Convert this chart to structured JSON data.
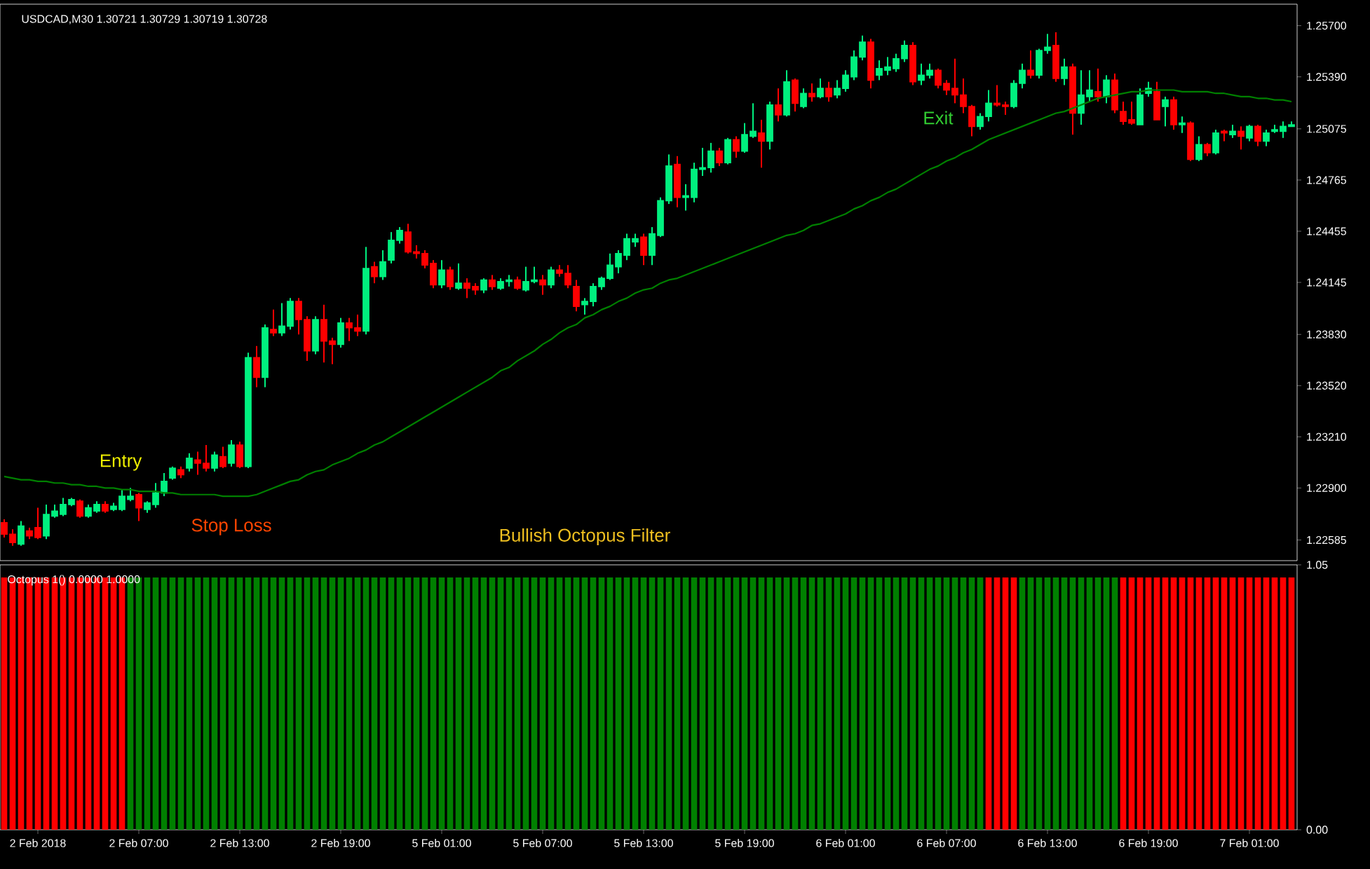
{
  "chart_data": [
    {
      "type": "candlestick",
      "title": "USDCAD,M30  1.30721 1.30729 1.30719 1.30728",
      "categories": [
        null,
        null,
        null,
        null,
        null,
        null,
        null,
        null,
        null,
        null,
        null,
        null,
        null,
        null,
        null,
        null,
        null,
        null,
        null,
        null,
        null,
        null,
        null,
        null,
        null,
        null,
        null,
        null,
        null,
        null,
        null,
        null,
        null,
        null,
        null,
        null,
        null,
        null,
        null,
        null,
        null,
        null,
        null,
        null,
        null,
        null,
        null,
        null,
        null,
        null,
        null,
        null,
        null,
        null,
        null,
        null,
        null,
        null,
        null,
        null,
        null,
        null,
        null,
        null,
        null,
        null,
        null,
        null,
        null,
        null,
        null,
        null,
        null,
        null,
        null,
        null,
        null,
        null,
        null,
        null,
        null,
        null,
        null,
        null,
        null,
        null,
        null,
        null,
        null,
        null,
        null,
        null,
        null,
        null,
        null,
        null,
        null,
        null,
        null,
        null,
        null,
        null,
        null,
        null,
        null,
        null,
        null,
        null,
        null,
        null,
        null,
        null,
        null,
        null,
        null,
        null,
        null,
        null,
        null,
        null,
        null,
        null,
        null,
        null,
        null,
        null,
        null,
        null,
        null,
        null,
        null,
        null,
        null,
        null,
        null,
        null,
        null,
        null,
        null,
        null,
        null,
        null,
        null,
        null,
        null,
        null,
        null,
        null,
        null,
        null,
        null,
        null,
        null,
        null
      ],
      "ohlc": [
        [
          1.2269,
          1.2271,
          1.226,
          1.2262
        ],
        [
          1.2262,
          1.2265,
          1.2255,
          1.2257
        ],
        [
          1.2256,
          1.227,
          1.2255,
          1.2267
        ],
        [
          1.2264,
          1.2266,
          1.2259,
          1.2261
        ],
        [
          1.2266,
          1.2278,
          1.2259,
          1.226
        ],
        [
          1.2261,
          1.228,
          1.2259,
          1.2274
        ],
        [
          1.2273,
          1.228,
          1.2272,
          1.2276
        ],
        [
          1.2274,
          1.2284,
          1.2273,
          1.228
        ],
        [
          1.228,
          1.2284,
          1.2279,
          1.2283
        ],
        [
          1.2282,
          1.2283,
          1.2272,
          1.2273
        ],
        [
          1.2273,
          1.228,
          1.2272,
          1.2278
        ],
        [
          1.2276,
          1.2282,
          1.2275,
          1.228
        ],
        [
          1.228,
          1.2282,
          1.2275,
          1.2276
        ],
        [
          1.2277,
          1.2281,
          1.2276,
          1.2279
        ],
        [
          1.2277,
          1.2289,
          1.2276,
          1.2285
        ],
        [
          1.2283,
          1.229,
          1.2282,
          1.2285
        ],
        [
          1.2286,
          1.2287,
          1.227,
          1.2278
        ],
        [
          1.2277,
          1.2282,
          1.2275,
          1.2281
        ],
        [
          1.228,
          1.2293,
          1.2278,
          1.2287
        ],
        [
          1.2287,
          1.2299,
          1.2285,
          1.2294
        ],
        [
          1.2296,
          1.2303,
          1.2295,
          1.2302
        ],
        [
          1.2301,
          1.2303,
          1.2296,
          1.2298
        ],
        [
          1.2302,
          1.2311,
          1.23,
          1.2308
        ],
        [
          1.2307,
          1.2312,
          1.2298,
          1.2305
        ],
        [
          1.2305,
          1.2316,
          1.23,
          1.2302
        ],
        [
          1.2302,
          1.2312,
          1.23,
          1.231
        ],
        [
          1.2309,
          1.2315,
          1.2302,
          1.2303
        ],
        [
          1.2305,
          1.2319,
          1.2303,
          1.2316
        ],
        [
          1.2316,
          1.2318,
          1.2302,
          1.2303
        ],
        [
          1.2303,
          1.2372,
          1.2302,
          1.2369
        ],
        [
          1.2369,
          1.2376,
          1.2351,
          1.2357
        ],
        [
          1.2357,
          1.2389,
          1.2351,
          1.2387
        ],
        [
          1.2386,
          1.2398,
          1.2382,
          1.2384
        ],
        [
          1.2384,
          1.2402,
          1.2382,
          1.2388
        ],
        [
          1.2388,
          1.2405,
          1.2386,
          1.2403
        ],
        [
          1.2403,
          1.2405,
          1.2383,
          1.2392
        ],
        [
          1.2392,
          1.2394,
          1.2367,
          1.2373
        ],
        [
          1.2373,
          1.2394,
          1.2371,
          1.2392
        ],
        [
          1.2392,
          1.2401,
          1.2366,
          1.2379
        ],
        [
          1.2379,
          1.2381,
          1.2365,
          1.2377
        ],
        [
          1.2377,
          1.2393,
          1.2375,
          1.239
        ],
        [
          1.239,
          1.2393,
          1.2379,
          1.2387
        ],
        [
          1.2387,
          1.2395,
          1.2382,
          1.2385
        ],
        [
          1.2385,
          1.2436,
          1.2383,
          1.2423
        ],
        [
          1.2424,
          1.2427,
          1.2414,
          1.2418
        ],
        [
          1.2418,
          1.2434,
          1.2416,
          1.2427
        ],
        [
          1.2428,
          1.2445,
          1.2426,
          1.244
        ],
        [
          1.244,
          1.2448,
          1.2438,
          1.2446
        ],
        [
          1.2445,
          1.245,
          1.2432,
          1.2433
        ],
        [
          1.2433,
          1.2437,
          1.2429,
          1.2432
        ],
        [
          1.2432,
          1.2434,
          1.2423,
          1.2425
        ],
        [
          1.2426,
          1.2428,
          1.2411,
          1.2413
        ],
        [
          1.2413,
          1.2428,
          1.2411,
          1.2422
        ],
        [
          1.2422,
          1.2424,
          1.241,
          1.2412
        ],
        [
          1.2411,
          1.2426,
          1.241,
          1.2414
        ],
        [
          1.2414,
          1.2417,
          1.2405,
          1.2411
        ],
        [
          1.2412,
          1.2414,
          1.2407,
          1.241
        ],
        [
          1.241,
          1.2417,
          1.2408,
          1.2416
        ],
        [
          1.2416,
          1.2419,
          1.241,
          1.2412
        ],
        [
          1.2411,
          1.2417,
          1.241,
          1.2415
        ],
        [
          1.2415,
          1.2419,
          1.2412,
          1.2416
        ],
        [
          1.2416,
          1.2418,
          1.241,
          1.2411
        ],
        [
          1.241,
          1.2424,
          1.2409,
          1.2415
        ],
        [
          1.2415,
          1.2424,
          1.2414,
          1.2416
        ],
        [
          1.2416,
          1.2419,
          1.2407,
          1.2413
        ],
        [
          1.2413,
          1.2424,
          1.2411,
          1.2422
        ],
        [
          1.2422,
          1.2425,
          1.2418,
          1.242
        ],
        [
          1.242,
          1.2425,
          1.2411,
          1.2413
        ],
        [
          1.2412,
          1.2416,
          1.2397,
          1.24
        ],
        [
          1.2401,
          1.2405,
          1.2395,
          1.2403
        ],
        [
          1.2403,
          1.2414,
          1.24,
          1.2412
        ],
        [
          1.2412,
          1.2418,
          1.241,
          1.2417
        ],
        [
          1.2417,
          1.2432,
          1.2416,
          1.2425
        ],
        [
          1.2424,
          1.2434,
          1.242,
          1.2432
        ],
        [
          1.2431,
          1.2444,
          1.2428,
          1.2441
        ],
        [
          1.2439,
          1.2444,
          1.2436,
          1.2441
        ],
        [
          1.2442,
          1.2444,
          1.2425,
          1.2431
        ],
        [
          1.2431,
          1.2448,
          1.2425,
          1.2444
        ],
        [
          1.2443,
          1.2466,
          1.2442,
          1.2464
        ],
        [
          1.2464,
          1.2492,
          1.2462,
          1.2485
        ],
        [
          1.2486,
          1.2491,
          1.246,
          1.2466
        ],
        [
          1.2466,
          1.2474,
          1.2458,
          1.2467
        ],
        [
          1.2466,
          1.2487,
          1.2463,
          1.2483
        ],
        [
          1.2483,
          1.2496,
          1.2479,
          1.2484
        ],
        [
          1.2484,
          1.2499,
          1.2481,
          1.2494
        ],
        [
          1.2494,
          1.2496,
          1.2485,
          1.2487
        ],
        [
          1.2487,
          1.2502,
          1.2486,
          1.2501
        ],
        [
          1.2501,
          1.2503,
          1.249,
          1.2494
        ],
        [
          1.2494,
          1.2511,
          1.2493,
          1.2504
        ],
        [
          1.2503,
          1.2523,
          1.2502,
          1.2506
        ],
        [
          1.2505,
          1.2513,
          1.2484,
          1.25
        ],
        [
          1.25,
          1.2524,
          1.2495,
          1.2522
        ],
        [
          1.2522,
          1.2532,
          1.2512,
          1.2516
        ],
        [
          1.2516,
          1.2543,
          1.2515,
          1.2536
        ],
        [
          1.2537,
          1.2538,
          1.2518,
          1.2523
        ],
        [
          1.2521,
          1.2532,
          1.252,
          1.2529
        ],
        [
          1.2529,
          1.2535,
          1.2524,
          1.2527
        ],
        [
          1.2527,
          1.2538,
          1.2526,
          1.2532
        ],
        [
          1.2532,
          1.2536,
          1.2524,
          1.2527
        ],
        [
          1.2528,
          1.2537,
          1.2526,
          1.2532
        ],
        [
          1.2532,
          1.2543,
          1.253,
          1.254
        ],
        [
          1.2539,
          1.2555,
          1.2537,
          1.2551
        ],
        [
          1.2551,
          1.2564,
          1.2549,
          1.256
        ],
        [
          1.256,
          1.2562,
          1.2532,
          1.2537
        ],
        [
          1.254,
          1.2549,
          1.2537,
          1.2544
        ],
        [
          1.2543,
          1.2551,
          1.254,
          1.2545
        ],
        [
          1.2544,
          1.2553,
          1.2542,
          1.255
        ],
        [
          1.255,
          1.2561,
          1.2548,
          1.2558
        ],
        [
          1.2558,
          1.256,
          1.2534,
          1.2536
        ],
        [
          1.2537,
          1.2547,
          1.2534,
          1.254
        ],
        [
          1.254,
          1.2547,
          1.2538,
          1.2543
        ],
        [
          1.2543,
          1.2544,
          1.2532,
          1.2534
        ],
        [
          1.2535,
          1.2537,
          1.2528,
          1.2531
        ],
        [
          1.2532,
          1.255,
          1.2523,
          1.2528
        ],
        [
          1.2528,
          1.2538,
          1.2517,
          1.2521
        ],
        [
          1.2521,
          1.2522,
          1.2503,
          1.2509
        ],
        [
          1.2509,
          1.2517,
          1.2507,
          1.2515
        ],
        [
          1.2515,
          1.2531,
          1.2512,
          1.2523
        ],
        [
          1.2523,
          1.2534,
          1.2521,
          1.2522
        ],
        [
          1.2522,
          1.2524,
          1.2516,
          1.2521
        ],
        [
          1.2521,
          1.2537,
          1.252,
          1.2535
        ],
        [
          1.2535,
          1.2547,
          1.2532,
          1.2543
        ],
        [
          1.2543,
          1.2555,
          1.2538,
          1.254
        ],
        [
          1.254,
          1.2556,
          1.2538,
          1.2555
        ],
        [
          1.2555,
          1.2565,
          1.2553,
          1.2557
        ],
        [
          1.2558,
          1.2566,
          1.2536,
          1.2538
        ],
        [
          1.2538,
          1.255,
          1.2534,
          1.2545
        ],
        [
          1.2545,
          1.2547,
          1.2504,
          1.2517
        ],
        [
          1.2517,
          1.2543,
          1.251,
          1.2528
        ],
        [
          1.2527,
          1.2543,
          1.2524,
          1.2531
        ],
        [
          1.253,
          1.2544,
          1.2524,
          1.2527
        ],
        [
          1.2527,
          1.254,
          1.2523,
          1.2537
        ],
        [
          1.2537,
          1.2541,
          1.2517,
          1.2519
        ],
        [
          1.2518,
          1.2524,
          1.251,
          1.2512
        ],
        [
          1.2513,
          1.2524,
          1.251,
          1.2511
        ],
        [
          1.251,
          1.2532,
          1.251,
          1.2528
        ],
        [
          1.2529,
          1.2536,
          1.2527,
          1.2532
        ],
        [
          1.253,
          1.2536,
          1.2513,
          1.2513
        ],
        [
          1.2521,
          1.2527,
          1.2509,
          1.2525
        ],
        [
          1.2525,
          1.2527,
          1.2507,
          1.251
        ],
        [
          1.251,
          1.2515,
          1.2505,
          1.2511
        ],
        [
          1.2511,
          1.2512,
          1.2488,
          1.2489
        ],
        [
          1.2489,
          1.2503,
          1.2488,
          1.2498
        ],
        [
          1.2498,
          1.2499,
          1.2491,
          1.2493
        ],
        [
          1.2493,
          1.2507,
          1.2492,
          1.2505
        ],
        [
          1.2506,
          1.2507,
          1.25,
          1.2505
        ],
        [
          1.2504,
          1.251,
          1.2502,
          1.2506
        ],
        [
          1.2506,
          1.2509,
          1.2495,
          1.2503
        ],
        [
          1.2502,
          1.251,
          1.25,
          1.2509
        ],
        [
          1.2509,
          1.251,
          1.2497,
          1.25
        ],
        [
          1.25,
          1.2507,
          1.2497,
          1.2505
        ],
        [
          1.2506,
          1.251,
          1.2505,
          1.2507
        ],
        [
          1.2506,
          1.2512,
          1.2502,
          1.2509
        ],
        [
          1.2509,
          1.2512,
          1.2509,
          1.251
        ]
      ],
      "colors": [
        "#ff0000",
        "#ff0000",
        "#00f07f",
        "#ff0000",
        "#ff0000",
        "#00f07f",
        "#00f07f",
        "#00f07f",
        "#00f07f",
        "#ff0000",
        "#00f07f",
        "#00f07f",
        "#ff0000",
        "#00f07f",
        "#00f07f",
        "#00f07f",
        "#ff0000",
        "#00f07f",
        "#00f07f",
        "#00f07f",
        "#00f07f",
        "#ff0000",
        "#00f07f",
        "#ff0000",
        "#ff0000",
        "#00f07f",
        "#ff0000",
        "#00f07f",
        "#ff0000",
        "#00f07f",
        "#ff0000",
        "#00f07f",
        "#ff0000",
        "#00f07f",
        "#00f07f",
        "#ff0000",
        "#ff0000",
        "#00f07f",
        "#ff0000",
        "#ff0000",
        "#00f07f",
        "#ff0000",
        "#ff0000",
        "#00f07f",
        "#ff0000",
        "#00f07f",
        "#00f07f",
        "#00f07f",
        "#ff0000",
        "#ff0000",
        "#ff0000",
        "#ff0000",
        "#00f07f",
        "#ff0000",
        "#00f07f",
        "#ff0000",
        "#ff0000",
        "#00f07f",
        "#ff0000",
        "#00f07f",
        "#00f07f",
        "#ff0000",
        "#00f07f",
        "#00f07f",
        "#ff0000",
        "#00f07f",
        "#ff0000",
        "#ff0000",
        "#ff0000",
        "#00f07f",
        "#00f07f",
        "#00f07f",
        "#00f07f",
        "#00f07f",
        "#00f07f",
        "#00f07f",
        "#ff0000",
        "#00f07f",
        "#00f07f",
        "#00f07f",
        "#ff0000",
        "#00f07f",
        "#00f07f",
        "#00f07f",
        "#00f07f",
        "#ff0000",
        "#00f07f",
        "#ff0000",
        "#00f07f",
        "#00f07f",
        "#ff0000",
        "#00f07f",
        "#ff0000",
        "#00f07f",
        "#ff0000",
        "#00f07f",
        "#ff0000",
        "#00f07f",
        "#ff0000",
        "#00f07f",
        "#00f07f",
        "#00f07f",
        "#00f07f",
        "#ff0000",
        "#00f07f",
        "#00f07f",
        "#00f07f",
        "#00f07f",
        "#ff0000",
        "#00f07f",
        "#00f07f",
        "#ff0000",
        "#ff0000",
        "#ff0000",
        "#ff0000",
        "#ff0000",
        "#00f07f",
        "#00f07f",
        "#ff0000",
        "#ff0000",
        "#00f07f",
        "#00f07f",
        "#ff0000",
        "#00f07f",
        "#00f07f",
        "#ff0000",
        "#00f07f",
        "#ff0000",
        "#00f07f",
        "#00f07f",
        "#ff0000",
        "#00f07f",
        "#ff0000",
        "#ff0000",
        "#ff0000",
        "#00f07f",
        "#00f07f",
        "#ff0000",
        "#00f07f",
        "#ff0000",
        "#00f07f",
        "#ff0000",
        "#00f07f",
        "#ff0000",
        "#00f07f",
        "#ff0000",
        "#00f07f",
        "#ff0000",
        "#00f07f",
        "#ff0000",
        "#00f07f",
        "#00f07f",
        "#00f07f",
        "#00f07f"
      ],
      "series": [
        {
          "type": "line",
          "color": "#008000",
          "values": [
            1.2297,
            1.2296,
            1.2295,
            1.2295,
            1.2294,
            1.2294,
            1.2293,
            1.2293,
            1.2292,
            1.2292,
            1.2291,
            1.2291,
            1.229,
            1.229,
            1.2289,
            1.2289,
            1.2288,
            1.2288,
            1.2288,
            1.2287,
            1.2287,
            1.2286,
            1.2286,
            1.2286,
            1.2286,
            1.2286,
            1.2285,
            1.2285,
            1.2285,
            1.2285,
            1.2286,
            1.2288,
            1.229,
            1.2292,
            1.2294,
            1.2295,
            1.2298,
            1.23,
            1.2301,
            1.2304,
            1.2306,
            1.2308,
            1.2311,
            1.2313,
            1.2316,
            1.2318,
            1.2321,
            1.2324,
            1.2327,
            1.233,
            1.2333,
            1.2336,
            1.2339,
            1.2342,
            1.2345,
            1.2348,
            1.2351,
            1.2354,
            1.2357,
            1.2361,
            1.2363,
            1.2367,
            1.237,
            1.2373,
            1.2377,
            1.238,
            1.2384,
            1.2387,
            1.2389,
            1.2393,
            1.2395,
            1.2398,
            1.24,
            1.2403,
            1.2405,
            1.2408,
            1.241,
            1.2411,
            1.2414,
            1.2416,
            1.2417,
            1.2419,
            1.2421,
            1.2423,
            1.2425,
            1.2427,
            1.2429,
            1.2431,
            1.2433,
            1.2435,
            1.2437,
            1.2439,
            1.2441,
            1.2443,
            1.2444,
            1.2446,
            1.2449,
            1.245,
            1.2452,
            1.2454,
            1.2456,
            1.2459,
            1.2461,
            1.2464,
            1.2466,
            1.2469,
            1.2471,
            1.2474,
            1.2477,
            1.248,
            1.2483,
            1.2485,
            1.2488,
            1.249,
            1.2493,
            1.2495,
            1.2498,
            1.2501,
            1.2503,
            1.2505,
            1.2507,
            1.2509,
            1.2511,
            1.2513,
            1.2515,
            1.2517,
            1.2518,
            1.252,
            1.2522,
            1.2524,
            1.2526,
            1.2527,
            1.2528,
            1.2529,
            1.253,
            1.253,
            1.2531,
            1.2531,
            1.2531,
            1.2531,
            1.253,
            1.253,
            1.253,
            1.253,
            1.2529,
            1.2529,
            1.2528,
            1.2527,
            1.2527,
            1.2526,
            1.2526,
            1.2525,
            1.2525,
            1.2524
          ]
        }
      ],
      "ylim": [
        1.2246,
        1.2583
      ],
      "yticks": [
        {
          "value": 1.257,
          "label": "1.25700"
        },
        {
          "value": 1.2539,
          "label": "1.25390"
        },
        {
          "value": 1.25075,
          "label": "1.25075"
        },
        {
          "value": 1.24765,
          "label": "1.24765"
        },
        {
          "value": 1.24455,
          "label": "1.24455"
        },
        {
          "value": 1.24145,
          "label": "1.24145"
        },
        {
          "value": 1.2383,
          "label": "1.23830"
        },
        {
          "value": 1.2352,
          "label": "1.23520"
        },
        {
          "value": 1.2321,
          "label": "1.23210"
        },
        {
          "value": 1.229,
          "label": "1.22900"
        },
        {
          "value": 1.22585,
          "label": "1.22585"
        }
      ],
      "tick_labels": "y",
      "annotations": [
        "Entry",
        "Stop Loss",
        "Exit",
        "Bullish Octopus Filter"
      ]
    },
    {
      "type": "bar",
      "title": "Octopus 1() 0.0000 1.0000",
      "categories": [
        null,
        null,
        null,
        null,
        "2 Feb 2018",
        null,
        null,
        null,
        null,
        null,
        null,
        null,
        null,
        null,
        null,
        null,
        "2 Feb 07:00",
        null,
        null,
        null,
        null,
        null,
        null,
        null,
        null,
        null,
        null,
        null,
        "2 Feb 13:00",
        null,
        null,
        null,
        null,
        null,
        null,
        null,
        null,
        null,
        null,
        null,
        "2 Feb 19:00",
        null,
        null,
        null,
        null,
        null,
        null,
        null,
        null,
        null,
        null,
        null,
        "5 Feb 01:00",
        null,
        null,
        null,
        null,
        null,
        null,
        null,
        null,
        null,
        null,
        null,
        "5 Feb 07:00",
        null,
        null,
        null,
        null,
        null,
        null,
        null,
        null,
        null,
        null,
        null,
        "5 Feb 13:00",
        null,
        null,
        null,
        null,
        null,
        null,
        null,
        null,
        null,
        null,
        null,
        "5 Feb 19:00",
        null,
        null,
        null,
        null,
        null,
        null,
        null,
        null,
        null,
        null,
        null,
        "6 Feb 01:00",
        null,
        null,
        null,
        null,
        null,
        null,
        null,
        null,
        null,
        null,
        null,
        "6 Feb 07:00",
        null,
        null,
        null,
        null,
        null,
        null,
        null,
        null,
        null,
        null,
        null,
        "6 Feb 13:00",
        null,
        null,
        null,
        null,
        null,
        null,
        null,
        null,
        null,
        null,
        null,
        "6 Feb 19:00",
        null,
        null,
        null,
        null,
        null,
        null,
        null,
        null,
        null,
        null,
        null,
        "7 Feb 01:00",
        null,
        null,
        null,
        null,
        null
      ],
      "values": [
        1,
        1,
        1,
        1,
        1,
        1,
        1,
        1,
        1,
        1,
        1,
        1,
        1,
        1,
        1,
        1,
        1,
        1,
        1,
        1,
        1,
        1,
        1,
        1,
        1,
        1,
        1,
        1,
        1,
        1,
        1,
        1,
        1,
        1,
        1,
        1,
        1,
        1,
        1,
        1,
        1,
        1,
        1,
        1,
        1,
        1,
        1,
        1,
        1,
        1,
        1,
        1,
        1,
        1,
        1,
        1,
        1,
        1,
        1,
        1,
        1,
        1,
        1,
        1,
        1,
        1,
        1,
        1,
        1,
        1,
        1,
        1,
        1,
        1,
        1,
        1,
        1,
        1,
        1,
        1,
        1,
        1,
        1,
        1,
        1,
        1,
        1,
        1,
        1,
        1,
        1,
        1,
        1,
        1,
        1,
        1,
        1,
        1,
        1,
        1,
        1,
        1,
        1,
        1,
        1,
        1,
        1,
        1,
        1,
        1,
        1,
        1,
        1,
        1,
        1,
        1,
        1,
        1,
        1,
        1,
        1,
        1,
        1,
        1,
        1,
        1,
        1,
        1,
        1,
        1,
        1,
        1,
        1,
        1,
        1,
        1,
        1,
        1,
        1,
        1,
        1,
        1,
        1,
        1,
        1,
        1,
        1,
        1,
        1,
        1,
        1,
        1,
        1,
        1
      ],
      "colors": [
        "#ff0000",
        "#ff0000",
        "#ff0000",
        "#ff0000",
        "#ff0000",
        "#ff0000",
        "#ff0000",
        "#ff0000",
        "#ff0000",
        "#ff0000",
        "#ff0000",
        "#ff0000",
        "#ff0000",
        "#ff0000",
        "#ff0000",
        "#008000",
        "#008000",
        "#008000",
        "#008000",
        "#008000",
        "#008000",
        "#008000",
        "#008000",
        "#008000",
        "#008000",
        "#008000",
        "#008000",
        "#008000",
        "#008000",
        "#008000",
        "#008000",
        "#008000",
        "#008000",
        "#008000",
        "#008000",
        "#008000",
        "#008000",
        "#008000",
        "#008000",
        "#008000",
        "#008000",
        "#008000",
        "#008000",
        "#008000",
        "#008000",
        "#008000",
        "#008000",
        "#008000",
        "#008000",
        "#008000",
        "#008000",
        "#008000",
        "#008000",
        "#008000",
        "#008000",
        "#008000",
        "#008000",
        "#008000",
        "#008000",
        "#008000",
        "#008000",
        "#008000",
        "#008000",
        "#008000",
        "#008000",
        "#008000",
        "#008000",
        "#008000",
        "#008000",
        "#008000",
        "#008000",
        "#008000",
        "#008000",
        "#008000",
        "#008000",
        "#008000",
        "#008000",
        "#008000",
        "#008000",
        "#008000",
        "#008000",
        "#008000",
        "#008000",
        "#008000",
        "#008000",
        "#008000",
        "#008000",
        "#008000",
        "#008000",
        "#008000",
        "#008000",
        "#008000",
        "#008000",
        "#008000",
        "#008000",
        "#008000",
        "#008000",
        "#008000",
        "#008000",
        "#008000",
        "#008000",
        "#008000",
        "#008000",
        "#008000",
        "#008000",
        "#008000",
        "#008000",
        "#008000",
        "#008000",
        "#008000",
        "#008000",
        "#008000",
        "#008000",
        "#008000",
        "#008000",
        "#008000",
        "#008000",
        "#ff0000",
        "#ff0000",
        "#ff0000",
        "#ff0000",
        "#008000",
        "#008000",
        "#008000",
        "#008000",
        "#008000",
        "#008000",
        "#008000",
        "#008000",
        "#008000",
        "#008000",
        "#008000",
        "#008000",
        "#ff0000",
        "#ff0000",
        "#ff0000",
        "#ff0000",
        "#ff0000",
        "#ff0000",
        "#ff0000",
        "#ff0000",
        "#ff0000",
        "#ff0000",
        "#ff0000",
        "#ff0000",
        "#ff0000",
        "#ff0000",
        "#ff0000",
        "#ff0000",
        "#ff0000",
        "#ff0000",
        "#ff0000",
        "#ff0000",
        "#ff0000"
      ],
      "ylim": [
        0,
        1.05
      ],
      "yticks": [
        {
          "value": 0,
          "label": "0.00"
        },
        1.05
      ]
    }
  ]
}
